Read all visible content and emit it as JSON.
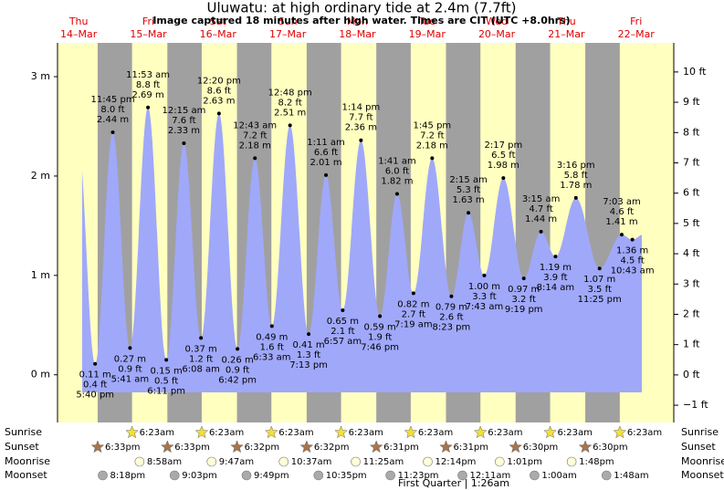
{
  "chart_data": {
    "type": "tide",
    "title": "Uluwatu: at high  ordinary tide at 2.4m (7.7ft)",
    "subtitle": "Image captured 18 minutes after high water. Times are CIT (UTC +8.0hrs)",
    "ylim": [
      -0.48,
      3.34
    ],
    "yticks": [
      {
        "value": 0,
        "label": "0 m"
      },
      {
        "value": 1,
        "label": "1 m"
      },
      {
        "value": 2,
        "label": "2 m"
      },
      {
        "value": 3,
        "label": "3 m"
      }
    ],
    "y2lim": [
      -1.57,
      10.96
    ],
    "y2ticks": [
      {
        "value": -1,
        "label": "−1 ft"
      },
      {
        "value": 0,
        "label": "0 ft"
      },
      {
        "value": 1,
        "label": "1 ft"
      },
      {
        "value": 2,
        "label": "2 ft"
      },
      {
        "value": 3,
        "label": "3 ft"
      },
      {
        "value": 4,
        "label": "4 ft"
      },
      {
        "value": 5,
        "label": "5 ft"
      },
      {
        "value": 6,
        "label": "6 ft"
      },
      {
        "value": 7,
        "label": "7 ft"
      },
      {
        "value": 8,
        "label": "8 ft"
      },
      {
        "value": 9,
        "label": "9 ft"
      },
      {
        "value": 10,
        "label": "10 ft"
      }
    ],
    "color": "#a0a8fa",
    "day_color": "#ffffc0",
    "night_color": "#a0a0a0",
    "row_labels": [
      "Sunrise",
      "Sunset",
      "Moonrise",
      "Moonset"
    ],
    "moon_phase": "First Quarter | 1:26am",
    "days": [
      {
        "weekday": "Thu",
        "date": "14–Mar",
        "sunset": "6:33pm",
        "moonset": "8:18pm",
        "tides": {
          "times": [
            "5:40 pm",
            "11:45 pm"
          ],
          "values": [
            0.11,
            2.44
          ],
          "value_labels": [
            "0.11 m",
            "2.44 m"
          ],
          "ft_labels": [
            "0.4 ft",
            "8.0 ft"
          ]
        }
      },
      {
        "weekday": "Fri",
        "date": "15–Mar",
        "sunrise": "6:23am",
        "sunset": "6:33pm",
        "moonrise": "8:58am",
        "moonset": "9:03pm",
        "tides": {
          "times": [
            "5:41 am",
            "11:53 am",
            "6:11 pm"
          ],
          "values": [
            0.27,
            2.69,
            0.15
          ],
          "value_labels": [
            "0.27 m",
            "2.69 m",
            "0.15 m"
          ],
          "ft_labels": [
            "0.9 ft",
            "8.8 ft",
            "0.5 ft"
          ]
        }
      },
      {
        "weekday": "Sat",
        "date": "16–Mar",
        "sunrise": "6:23am",
        "sunset": "6:32pm",
        "moonrise": "9:47am",
        "moonset": "9:49pm",
        "tides": {
          "times": [
            "12:15 am",
            "6:08 am",
            "12:20 pm",
            "6:42 pm"
          ],
          "values": [
            2.33,
            0.37,
            2.63,
            0.26
          ],
          "value_labels": [
            "2.33 m",
            "0.37 m",
            "2.63 m",
            "0.26 m"
          ],
          "ft_labels": [
            "7.6 ft",
            "1.2 ft",
            "8.6 ft",
            "0.9 ft"
          ]
        }
      },
      {
        "weekday": "Sun",
        "date": "17–Mar",
        "sunrise": "6:23am",
        "sunset": "6:32pm",
        "moonrise": "10:37am",
        "moonset": "10:35pm",
        "tides": {
          "times": [
            "12:43 am",
            "6:33 am",
            "12:48 pm",
            "7:13 pm"
          ],
          "values": [
            2.18,
            0.49,
            2.51,
            0.41
          ],
          "value_labels": [
            "2.18 m",
            "0.49 m",
            "2.51 m",
            "0.41 m"
          ],
          "ft_labels": [
            "7.2 ft",
            "1.6 ft",
            "8.2 ft",
            "1.3 ft"
          ]
        }
      },
      {
        "weekday": "Mon",
        "date": "18–Mar",
        "sunrise": "6:23am",
        "sunset": "6:31pm",
        "moonrise": "11:25am",
        "moonset": "11:23pm",
        "tides": {
          "times": [
            "1:11 am",
            "6:57 am",
            "1:14 pm",
            "7:46 pm"
          ],
          "values": [
            2.01,
            0.65,
            2.36,
            0.59
          ],
          "value_labels": [
            "2.01 m",
            "0.65 m",
            "2.36 m",
            "0.59 m"
          ],
          "ft_labels": [
            "6.6 ft",
            "2.1 ft",
            "7.7 ft",
            "1.9 ft"
          ]
        }
      },
      {
        "weekday": "Tue",
        "date": "19–Mar",
        "sunrise": "6:23am",
        "sunset": "6:31pm",
        "moonrise": "12:14pm",
        "tides": {
          "times": [
            "1:41 am",
            "7:19 am",
            "1:45 pm",
            "8:23 pm"
          ],
          "values": [
            1.82,
            0.82,
            2.18,
            0.79
          ],
          "value_labels": [
            "1.82 m",
            "0.82 m",
            "2.18 m",
            "0.79 m"
          ],
          "ft_labels": [
            "6.0 ft",
            "2.7 ft",
            "7.2 ft",
            "2.6 ft"
          ]
        }
      },
      {
        "weekday": "Wed",
        "date": "20–Mar",
        "sunrise": "6:23am",
        "sunset": "6:30pm",
        "moonrise": "1:01pm",
        "moonset": "12:11am",
        "tides": {
          "times": [
            "2:15 am",
            "7:43 am",
            "2:17 pm",
            "9:19 pm"
          ],
          "values": [
            1.63,
            1.0,
            1.98,
            0.97
          ],
          "value_labels": [
            "1.63 m",
            "1.00 m",
            "1.98 m",
            "0.97 m"
          ],
          "ft_labels": [
            "5.3 ft",
            "3.3 ft",
            "6.5 ft",
            "3.2 ft"
          ]
        }
      },
      {
        "weekday": "Thu",
        "date": "21–Mar",
        "sunrise": "6:23am",
        "sunset": "6:30pm",
        "moonrise": "1:48pm",
        "moonset": "1:00am",
        "tides": {
          "times": [
            "3:15 am",
            "8:14 am",
            "3:16 pm",
            "11:25 pm"
          ],
          "values": [
            1.44,
            1.19,
            1.78,
            1.07
          ],
          "value_labels": [
            "1.44 m",
            "1.19 m",
            "1.78 m",
            "1.07 m"
          ],
          "ft_labels": [
            "4.7 ft",
            "3.9 ft",
            "5.8 ft",
            "3.5 ft"
          ]
        }
      },
      {
        "weekday": "Fri",
        "date": "22–Mar",
        "sunrise": "6:23am",
        "moonset": "1:48am",
        "tides": {
          "times": [
            "7:03 am",
            "10:43 am"
          ],
          "values": [
            1.41,
            1.36
          ],
          "value_labels": [
            "1.41 m",
            "1.36 m"
          ],
          "ft_labels": [
            "4.6 ft",
            "4.5 ft"
          ]
        }
      }
    ]
  }
}
